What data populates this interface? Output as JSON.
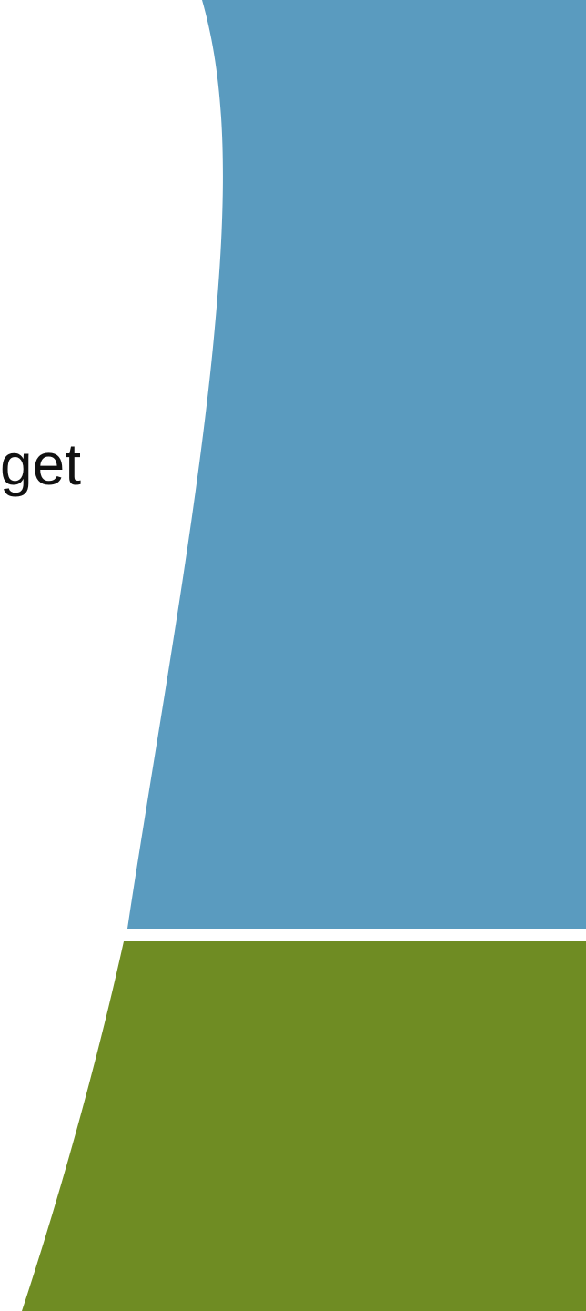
{
  "text": {
    "fragment": "get"
  },
  "colors": {
    "background": "#ffffff",
    "blue_panel": "#5a9bbf",
    "green_panel": "#6f8c23",
    "text": "#111111"
  }
}
